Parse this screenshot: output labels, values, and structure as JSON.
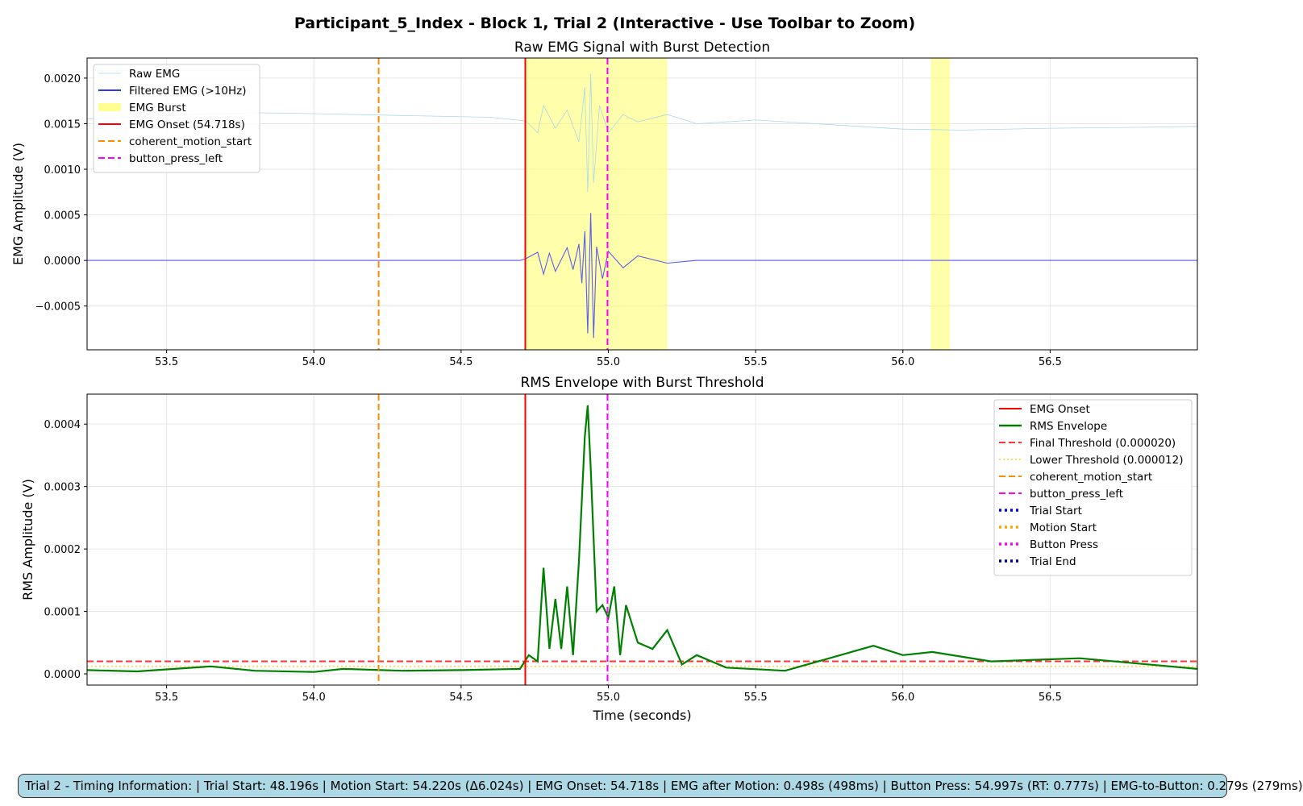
{
  "figure": {
    "title": "Participant_5_Index - Block 1, Trial 2 (Interactive - Use Toolbar to Zoom)",
    "info_text": "Trial 2 - Timing Information:  |  Trial Start: 48.196s  |  Motion Start: 54.220s (Δ6.024s)  |  EMG Onset: 54.718s  |  EMG after Motion: 0.498s (498ms)  |  Button Press: 54.997s (RT: 0.777s)  |  EMG-to-Button: 0.279s (279ms)"
  },
  "colors": {
    "raw": "#add8e6",
    "filtered": "#0000ff",
    "burst": "#ffff66",
    "onset": "#ff0000",
    "motion": "#ff8c00",
    "button": "#ff00ff",
    "rms": "#008000",
    "final_threshold": "#ff0000",
    "lower_threshold": "#ffd966",
    "trial_start": "#0000ff",
    "motion_start": "#ffa500",
    "button_press": "#ff00ff",
    "trial_end": "#00008b"
  },
  "chart_data": [
    {
      "type": "line",
      "title": "Raw EMG Signal with Burst Detection",
      "xlabel": "",
      "ylabel": "EMG Amplitude (V)",
      "xlim": [
        53.23,
        57.0
      ],
      "ylim": [
        -0.00098,
        0.00222
      ],
      "xticks": [
        53.5,
        54.0,
        54.5,
        55.0,
        55.5,
        56.0,
        56.5
      ],
      "xtick_labels": [
        "53.5",
        "54.0",
        "54.5",
        "55.0",
        "55.5",
        "56.0",
        "56.5"
      ],
      "yticks": [
        -0.0005,
        0.0,
        0.0005,
        0.001,
        0.0015,
        0.002
      ],
      "ytick_labels": [
        "−0.0005",
        "0.0000",
        "0.0005",
        "0.0010",
        "0.0015",
        "0.0020"
      ],
      "grid": true,
      "legend_position": "upper-left",
      "legend": [
        {
          "label": "Raw EMG",
          "style": "thin",
          "color": "#add8e6"
        },
        {
          "label": "Filtered EMG (>10Hz)",
          "style": "solid",
          "color": "#3333ff"
        },
        {
          "label": "EMG Burst",
          "style": "patch",
          "color": "#ffff66"
        },
        {
          "label": "EMG Onset (54.718s)",
          "style": "solid",
          "color": "#ff0000"
        },
        {
          "label": "coherent_motion_start",
          "style": "dashed",
          "color": "#ff8c00"
        },
        {
          "label": "button_press_left",
          "style": "dashed",
          "color": "#ff00ff"
        }
      ],
      "bursts": [
        [
          54.718,
          55.2
        ],
        [
          56.095,
          56.16
        ]
      ],
      "vlines": [
        {
          "x": 54.718,
          "color": "#ff0000",
          "style": "solid"
        },
        {
          "x": 54.22,
          "color": "#ff8c00",
          "style": "dashed"
        },
        {
          "x": 54.997,
          "color": "#ff00ff",
          "style": "dashed"
        }
      ],
      "series": [
        {
          "name": "Raw EMG",
          "color": "#add8e6",
          "points": [
            [
              53.23,
              0.00155
            ],
            [
              53.5,
              0.00159
            ],
            [
              53.8,
              0.00162
            ],
            [
              54.0,
              0.00161
            ],
            [
              54.3,
              0.00159
            ],
            [
              54.6,
              0.00157
            ],
            [
              54.72,
              0.00153
            ],
            [
              54.76,
              0.0014
            ],
            [
              54.78,
              0.0017
            ],
            [
              54.82,
              0.00145
            ],
            [
              54.86,
              0.00165
            ],
            [
              54.9,
              0.0013
            ],
            [
              54.92,
              0.0019
            ],
            [
              54.93,
              0.00075
            ],
            [
              54.94,
              0.00205
            ],
            [
              54.95,
              0.00085
            ],
            [
              54.97,
              0.0017
            ],
            [
              55.0,
              0.0014
            ],
            [
              55.05,
              0.0016
            ],
            [
              55.1,
              0.00152
            ],
            [
              55.2,
              0.0016
            ],
            [
              55.3,
              0.0015
            ],
            [
              55.5,
              0.00154
            ],
            [
              55.8,
              0.00148
            ],
            [
              56.0,
              0.00144
            ],
            [
              56.2,
              0.00143
            ],
            [
              56.5,
              0.00145
            ],
            [
              56.8,
              0.00146
            ],
            [
              57.0,
              0.00147
            ]
          ]
        },
        {
          "name": "Filtered EMG (>10Hz)",
          "color": "#3333ff",
          "points": [
            [
              53.23,
              0.0
            ],
            [
              54.7,
              0.0
            ],
            [
              54.72,
              2e-05
            ],
            [
              54.76,
              9e-05
            ],
            [
              54.78,
              -0.00015
            ],
            [
              54.8,
              8e-05
            ],
            [
              54.82,
              -0.00012
            ],
            [
              54.86,
              0.00014
            ],
            [
              54.88,
              -0.0001
            ],
            [
              54.9,
              0.00018
            ],
            [
              54.91,
              -0.00025
            ],
            [
              54.92,
              0.00032
            ],
            [
              54.93,
              -0.0008
            ],
            [
              54.94,
              0.00052
            ],
            [
              54.95,
              -0.00085
            ],
            [
              54.96,
              0.00015
            ],
            [
              54.98,
              -0.0002
            ],
            [
              55.0,
              0.0001
            ],
            [
              55.05,
              -8e-05
            ],
            [
              55.1,
              5e-05
            ],
            [
              55.2,
              -3e-05
            ],
            [
              55.3,
              0.0
            ],
            [
              56.0,
              0.0
            ],
            [
              56.5,
              0.0
            ],
            [
              57.0,
              0.0
            ]
          ]
        }
      ]
    },
    {
      "type": "line",
      "title": "RMS Envelope with Burst Threshold",
      "xlabel": "Time (seconds)",
      "ylabel": "RMS Amplitude (V)",
      "xlim": [
        53.23,
        57.0
      ],
      "ylim": [
        -1.8e-05,
        0.000448
      ],
      "xticks": [
        53.5,
        54.0,
        54.5,
        55.0,
        55.5,
        56.0,
        56.5
      ],
      "xtick_labels": [
        "53.5",
        "54.0",
        "54.5",
        "55.0",
        "55.5",
        "56.0",
        "56.5"
      ],
      "yticks": [
        0.0,
        0.0001,
        0.0002,
        0.0003,
        0.0004
      ],
      "ytick_labels": [
        "0.0000",
        "0.0001",
        "0.0002",
        "0.0003",
        "0.0004"
      ],
      "grid": true,
      "legend_position": "upper-right",
      "legend": [
        {
          "label": "EMG Onset",
          "style": "solid",
          "color": "#ff0000"
        },
        {
          "label": "RMS Envelope",
          "style": "thick",
          "color": "#008000"
        },
        {
          "label": "Final Threshold (0.000020)",
          "style": "dashed",
          "color": "#ff3333"
        },
        {
          "label": "Lower Threshold (0.000012)",
          "style": "dotted",
          "color": "#ffd966"
        },
        {
          "label": "coherent_motion_start",
          "style": "dashed",
          "color": "#ff8c00"
        },
        {
          "label": "button_press_left",
          "style": "dashed",
          "color": "#ff00ff"
        },
        {
          "label": "Trial Start",
          "style": "dotted-thick",
          "color": "#0000ff"
        },
        {
          "label": "Motion Start",
          "style": "dotted-thick",
          "color": "#ffa500"
        },
        {
          "label": "Button Press",
          "style": "dotted-thick",
          "color": "#ff00ff"
        },
        {
          "label": "Trial End",
          "style": "dotted-thick",
          "color": "#00008b"
        }
      ],
      "hlines": [
        {
          "y": 2e-05,
          "color": "#ff3333",
          "style": "dashed"
        },
        {
          "y": 1.2e-05,
          "color": "#ffd966",
          "style": "dotted"
        }
      ],
      "vlines": [
        {
          "x": 54.718,
          "color": "#ff0000",
          "style": "solid"
        },
        {
          "x": 54.22,
          "color": "#ff8c00",
          "style": "dashed"
        },
        {
          "x": 54.997,
          "color": "#ff00ff",
          "style": "dashed"
        }
      ],
      "series": [
        {
          "name": "RMS Envelope",
          "color": "#008000",
          "points": [
            [
              53.23,
              6e-06
            ],
            [
              53.4,
              4e-06
            ],
            [
              53.65,
              1.2e-05
            ],
            [
              53.8,
              5e-06
            ],
            [
              54.0,
              3e-06
            ],
            [
              54.1,
              8e-06
            ],
            [
              54.3,
              5e-06
            ],
            [
              54.5,
              6e-06
            ],
            [
              54.7,
              8e-06
            ],
            [
              54.73,
              3e-05
            ],
            [
              54.76,
              2e-05
            ],
            [
              54.78,
              0.00017
            ],
            [
              54.8,
              4e-05
            ],
            [
              54.82,
              0.00012
            ],
            [
              54.84,
              4e-05
            ],
            [
              54.86,
              0.00014
            ],
            [
              54.88,
              3e-05
            ],
            [
              54.9,
              0.00018
            ],
            [
              54.92,
              0.00038
            ],
            [
              54.93,
              0.00043
            ],
            [
              54.94,
              0.00033
            ],
            [
              54.96,
              0.0001
            ],
            [
              54.98,
              0.00011
            ],
            [
              55.0,
              9e-05
            ],
            [
              55.02,
              0.00014
            ],
            [
              55.04,
              3e-05
            ],
            [
              55.06,
              0.00011
            ],
            [
              55.1,
              5e-05
            ],
            [
              55.15,
              4e-05
            ],
            [
              55.2,
              7e-05
            ],
            [
              55.25,
              1.5e-05
            ],
            [
              55.3,
              3e-05
            ],
            [
              55.4,
              1e-05
            ],
            [
              55.6,
              5e-06
            ],
            [
              55.9,
              4.5e-05
            ],
            [
              56.0,
              3e-05
            ],
            [
              56.1,
              3.5e-05
            ],
            [
              56.3,
              2e-05
            ],
            [
              56.6,
              2.5e-05
            ],
            [
              57.0,
              8e-06
            ]
          ]
        }
      ]
    }
  ]
}
